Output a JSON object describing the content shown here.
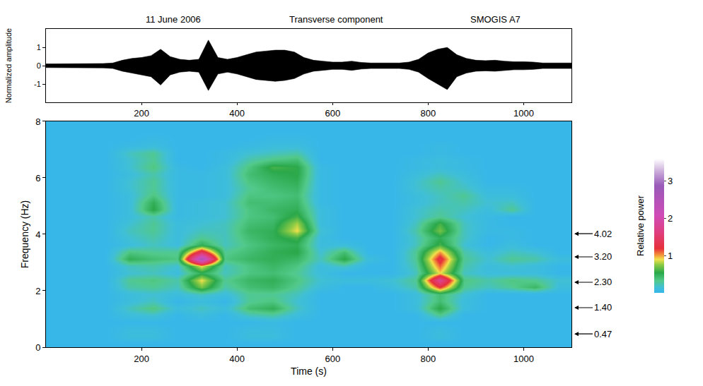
{
  "chart_data": [
    {
      "type": "waveform",
      "title": "Transverse component",
      "annotations": [
        "11 June 2006",
        "SMOGIS A7"
      ],
      "y_label": "Normalized amplitude",
      "color": "#000000",
      "x": [
        0,
        20,
        40,
        60,
        80,
        100,
        120,
        140,
        160,
        180,
        200,
        220,
        240,
        260,
        280,
        300,
        320,
        340,
        360,
        380,
        400,
        420,
        440,
        460,
        480,
        500,
        520,
        540,
        560,
        580,
        600,
        620,
        640,
        660,
        680,
        700,
        720,
        740,
        760,
        780,
        800,
        820,
        840,
        860,
        880,
        900,
        920,
        940,
        960,
        980,
        1000,
        1020,
        1040,
        1060,
        1080,
        1100
      ],
      "upper": [
        0.1,
        0.1,
        0.1,
        0.1,
        0.12,
        0.1,
        0.12,
        0.15,
        0.3,
        0.4,
        0.45,
        0.55,
        0.9,
        0.5,
        0.35,
        0.3,
        0.35,
        1.4,
        0.45,
        0.35,
        0.45,
        0.6,
        0.75,
        0.8,
        0.85,
        0.85,
        0.75,
        0.45,
        0.3,
        0.25,
        0.2,
        0.2,
        0.25,
        0.18,
        0.15,
        0.15,
        0.15,
        0.15,
        0.2,
        0.35,
        0.7,
        0.9,
        1.0,
        0.6,
        0.4,
        0.3,
        0.28,
        0.3,
        0.25,
        0.22,
        0.22,
        0.2,
        0.15,
        0.15,
        0.15,
        0.15
      ],
      "lower": [
        -0.1,
        -0.1,
        -0.1,
        -0.1,
        -0.12,
        -0.1,
        -0.12,
        -0.15,
        -0.3,
        -0.4,
        -0.5,
        -0.6,
        -1.05,
        -0.5,
        -0.35,
        -0.3,
        -0.35,
        -1.35,
        -0.45,
        -0.35,
        -0.45,
        -0.6,
        -0.75,
        -0.8,
        -0.85,
        -0.8,
        -0.7,
        -0.45,
        -0.3,
        -0.25,
        -0.2,
        -0.2,
        -0.25,
        -0.18,
        -0.15,
        -0.15,
        -0.15,
        -0.15,
        -0.2,
        -0.35,
        -0.7,
        -1.0,
        -1.3,
        -0.6,
        -0.4,
        -0.3,
        -0.28,
        -0.3,
        -0.25,
        -0.22,
        -0.22,
        -0.2,
        -0.15,
        -0.15,
        -0.15,
        -0.15
      ],
      "xlim": [
        0,
        1100
      ],
      "xticks": [
        200,
        400,
        600,
        800,
        1000
      ],
      "ylim": [
        -2,
        2
      ],
      "yticks": [
        -1,
        0,
        1
      ],
      "grid": false
    },
    {
      "type": "heatmap",
      "x_label": "Time (s)",
      "y_label": "Frequency (Hz)",
      "x": [
        25,
        75,
        125,
        175,
        225,
        275,
        325,
        375,
        425,
        475,
        525,
        575,
        625,
        675,
        725,
        775,
        825,
        875,
        925,
        975,
        1025,
        1075
      ],
      "y": [
        0.125,
        0.375,
        0.625,
        0.875,
        1.125,
        1.375,
        1.625,
        1.875,
        2.125,
        2.375,
        2.625,
        2.875,
        3.125,
        3.375,
        3.625,
        3.875,
        4.125,
        4.375,
        4.625,
        4.875,
        5.125,
        5.375,
        5.625,
        5.875,
        6.125,
        6.375,
        6.625,
        6.875,
        7.125,
        7.375,
        7.625,
        7.875
      ],
      "z": [
        [
          0,
          0,
          0,
          0,
          0,
          0,
          0,
          0,
          0,
          0,
          0,
          0,
          0,
          0,
          0,
          0,
          0,
          0,
          0,
          0,
          0,
          0
        ],
        [
          0,
          0,
          0,
          0.1,
          0.1,
          0,
          0,
          0,
          0.1,
          0.1,
          0,
          0,
          0,
          0,
          0,
          0,
          0.1,
          0,
          0,
          0,
          0,
          0
        ],
        [
          0,
          0,
          0,
          0.08,
          0.08,
          0,
          0,
          0,
          0.08,
          0.08,
          0,
          0,
          0,
          0,
          0,
          0,
          0.08,
          0,
          0,
          0,
          0,
          0
        ],
        [
          0,
          0,
          0,
          0,
          0,
          0,
          0,
          0,
          0,
          0.05,
          0,
          0,
          0,
          0,
          0,
          0,
          0,
          0,
          0,
          0,
          0,
          0
        ],
        [
          0,
          0,
          0,
          0.1,
          0.15,
          0,
          0.1,
          0,
          0.2,
          0.25,
          0.1,
          0,
          0,
          0,
          0,
          0,
          0.3,
          0,
          0,
          0,
          0,
          0
        ],
        [
          0,
          0,
          0,
          0.2,
          0.35,
          0.1,
          0.2,
          0.1,
          0.4,
          0.5,
          0.2,
          0,
          0,
          0,
          0,
          0.1,
          0.55,
          0.1,
          0,
          0,
          0,
          0
        ],
        [
          0,
          0,
          0,
          0.1,
          0.2,
          0,
          0.1,
          0,
          0.3,
          0.35,
          0.15,
          0,
          0,
          0,
          0,
          0.1,
          0.4,
          0.1,
          0,
          0,
          0,
          0
        ],
        [
          0,
          0,
          0,
          0.1,
          0.15,
          0.1,
          0.2,
          0.1,
          0.3,
          0.3,
          0.2,
          0,
          0,
          0,
          0,
          0.1,
          0.4,
          0.15,
          0,
          0,
          0,
          0
        ],
        [
          0,
          0,
          0,
          0.25,
          0.3,
          0.2,
          0.7,
          0.25,
          0.4,
          0.45,
          0.3,
          0.1,
          0,
          0,
          0.1,
          0.25,
          1.2,
          0.3,
          0.2,
          0.3,
          0.45,
          0.1
        ],
        [
          0,
          0,
          0,
          0.3,
          0.35,
          0.25,
          0.9,
          0.3,
          0.45,
          0.5,
          0.35,
          0.15,
          0.1,
          0.1,
          0.15,
          0.3,
          1.8,
          0.35,
          0.25,
          0.35,
          0.3,
          0.15
        ],
        [
          0,
          0,
          0,
          0.15,
          0.2,
          0.1,
          0.5,
          0.2,
          0.35,
          0.4,
          0.3,
          0.1,
          0,
          0,
          0,
          0.2,
          0.9,
          0.2,
          0.1,
          0.1,
          0.1,
          0
        ],
        [
          0,
          0,
          0,
          0.2,
          0.25,
          0.15,
          0.9,
          0.2,
          0.35,
          0.45,
          0.35,
          0.1,
          0.2,
          0,
          0,
          0.25,
          1.1,
          0.25,
          0.1,
          0.15,
          0.1,
          0
        ],
        [
          0,
          0,
          0,
          0.5,
          0.4,
          0.35,
          2.6,
          0.35,
          0.45,
          0.5,
          0.45,
          0.2,
          0.55,
          0.1,
          0,
          0.3,
          1.3,
          0.3,
          0.15,
          0.3,
          0.25,
          0.1
        ],
        [
          0,
          0,
          0,
          0.35,
          0.3,
          0.3,
          1.4,
          0.3,
          0.4,
          0.5,
          0.55,
          0.15,
          0.4,
          0,
          0,
          0.3,
          1.0,
          0.25,
          0.1,
          0.2,
          0.15,
          0
        ],
        [
          0,
          0,
          0,
          0.1,
          0.2,
          0.1,
          0.5,
          0.2,
          0.35,
          0.45,
          0.5,
          0.1,
          0.1,
          0,
          0,
          0.2,
          0.6,
          0.15,
          0,
          0.1,
          0,
          0
        ],
        [
          0,
          0,
          0,
          0.15,
          0.25,
          0.1,
          0.3,
          0.2,
          0.4,
          0.5,
          0.6,
          0.1,
          0,
          0,
          0,
          0.2,
          0.5,
          0.2,
          0,
          0.05,
          0,
          0
        ],
        [
          0,
          0,
          0,
          0.2,
          0.3,
          0.1,
          0.2,
          0.2,
          0.45,
          0.5,
          0.9,
          0.15,
          0,
          0,
          0,
          0.25,
          0.7,
          0.2,
          0.05,
          0.05,
          0,
          0
        ],
        [
          0,
          0,
          0,
          0.15,
          0.3,
          0.1,
          0.15,
          0.2,
          0.4,
          0.45,
          0.8,
          0.1,
          0,
          0,
          0,
          0.2,
          0.6,
          0.2,
          0.05,
          0,
          0,
          0
        ],
        [
          0,
          0,
          0,
          0.1,
          0.25,
          0.05,
          0.1,
          0.15,
          0.35,
          0.4,
          0.6,
          0.1,
          0,
          0,
          0,
          0.15,
          0.3,
          0.15,
          0.05,
          0,
          0,
          0
        ],
        [
          0,
          0,
          0,
          0.1,
          0.55,
          0.05,
          0.1,
          0.15,
          0.35,
          0.45,
          0.5,
          0.1,
          0,
          0,
          0,
          0.15,
          0.25,
          0.2,
          0.1,
          0.3,
          0,
          0
        ],
        [
          0,
          0,
          0,
          0.1,
          0.5,
          0.05,
          0.1,
          0.15,
          0.4,
          0.4,
          0.45,
          0.05,
          0,
          0,
          0,
          0.1,
          0.2,
          0.25,
          0.15,
          0.2,
          0,
          0
        ],
        [
          0,
          0,
          0,
          0.1,
          0.35,
          0.05,
          0.05,
          0.1,
          0.35,
          0.35,
          0.4,
          0.05,
          0,
          0,
          0,
          0.1,
          0.2,
          0.3,
          0.1,
          0.1,
          0,
          0
        ],
        [
          0,
          0,
          0,
          0.15,
          0.3,
          0.05,
          0.05,
          0.1,
          0.3,
          0.4,
          0.45,
          0.05,
          0,
          0,
          0,
          0.15,
          0.25,
          0.2,
          0.05,
          0.05,
          0,
          0
        ],
        [
          0,
          0,
          0,
          0.15,
          0.3,
          0.05,
          0.05,
          0.1,
          0.35,
          0.45,
          0.5,
          0.05,
          0,
          0,
          0,
          0.15,
          0.3,
          0.15,
          0,
          0,
          0,
          0
        ],
        [
          0,
          0,
          0,
          0.1,
          0.25,
          0.05,
          0.05,
          0.1,
          0.4,
          0.5,
          0.55,
          0.05,
          0,
          0,
          0,
          0.1,
          0.2,
          0.1,
          0,
          0,
          0,
          0
        ],
        [
          0,
          0,
          0,
          0.15,
          0.35,
          0.05,
          0,
          0.1,
          0.35,
          0.6,
          0.55,
          0.05,
          0,
          0,
          0,
          0.05,
          0.1,
          0.05,
          0,
          0,
          0,
          0
        ],
        [
          0,
          0,
          0,
          0.15,
          0.3,
          0,
          0,
          0.05,
          0.25,
          0.35,
          0.4,
          0,
          0,
          0,
          0,
          0.05,
          0.1,
          0.05,
          0,
          0,
          0,
          0
        ],
        [
          0,
          0,
          0,
          0.2,
          0.3,
          0,
          0,
          0.05,
          0.15,
          0.2,
          0.25,
          0,
          0,
          0,
          0,
          0,
          0.05,
          0,
          0,
          0,
          0,
          0
        ],
        [
          0,
          0,
          0,
          0.05,
          0.1,
          0,
          0,
          0,
          0.05,
          0.1,
          0.1,
          0,
          0,
          0,
          0,
          0,
          0.05,
          0,
          0,
          0,
          0,
          0
        ],
        [
          0,
          0,
          0,
          0,
          0.05,
          0,
          0,
          0,
          0,
          0.05,
          0.05,
          0,
          0,
          0,
          0,
          0,
          0,
          0,
          0,
          0,
          0,
          0
        ],
        [
          0,
          0,
          0,
          0,
          0,
          0,
          0,
          0,
          0,
          0,
          0,
          0,
          0,
          0,
          0,
          0,
          0,
          0,
          0,
          0,
          0,
          0
        ],
        [
          0,
          0,
          0,
          0,
          0,
          0,
          0,
          0,
          0,
          0,
          0,
          0,
          0,
          0,
          0,
          0,
          0,
          0,
          0,
          0,
          0,
          0
        ]
      ],
      "xlim": [
        0,
        1100
      ],
      "xticks": [
        200,
        400,
        600,
        800,
        1000
      ],
      "ylim": [
        0,
        8
      ],
      "yticks": [
        0,
        2,
        4,
        6,
        8
      ],
      "colorbar": {
        "title": "Relative power",
        "range": [
          0,
          3.6
        ],
        "ticks": [
          1,
          2,
          3
        ]
      },
      "annotations": [
        {
          "value": 4.02,
          "label": "4.02"
        },
        {
          "value": 3.2,
          "label": "3.20"
        },
        {
          "value": 2.3,
          "label": "2.30"
        },
        {
          "value": 1.4,
          "label": "1.40"
        },
        {
          "value": 0.47,
          "label": "0.47"
        }
      ],
      "grid": false
    }
  ]
}
